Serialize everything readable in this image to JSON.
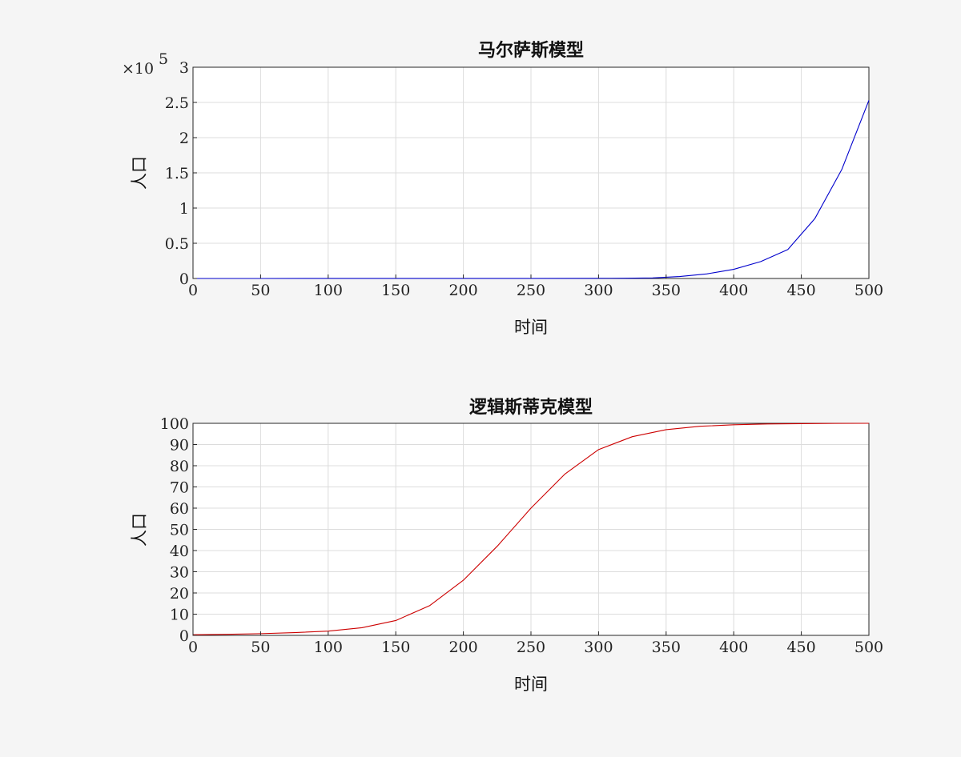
{
  "colors": {
    "background": "#f5f5f5",
    "axes_bg": "#ffffff",
    "grid": "#dcdcdc",
    "blue": "#0000cc",
    "red": "#cc0000"
  },
  "chart_data": [
    {
      "type": "line",
      "title": "马尔萨斯模型",
      "xlabel": "时间",
      "ylabel": "人口",
      "xlim": [
        0,
        500
      ],
      "ylim": [
        0,
        3
      ],
      "y_exponent_label": "×10",
      "y_exponent": "5",
      "grid": true,
      "xticks": [
        "0",
        "50",
        "100",
        "150",
        "200",
        "250",
        "300",
        "350",
        "400",
        "450",
        "500"
      ],
      "yticks": [
        "0",
        "0.5",
        "1",
        "1.5",
        "2",
        "2.5",
        "3"
      ],
      "series": [
        {
          "color": "#0000cc",
          "x": [
            0,
            50,
            100,
            150,
            200,
            250,
            300,
            320,
            340,
            360,
            380,
            400,
            420,
            440,
            460,
            480,
            500
          ],
          "y": [
            4e-06,
            6e-05,
            0.0008,
            0.0005,
            0.0006,
            0.0008,
            0.0025,
            0.0035,
            0.0075,
            0.028,
            0.065,
            0.13,
            0.24,
            0.41,
            0.85,
            1.55,
            2.53
          ]
        }
      ]
    },
    {
      "type": "line",
      "title": "逻辑斯蒂克模型",
      "xlabel": "时间",
      "ylabel": "人口",
      "xlim": [
        0,
        500
      ],
      "ylim": [
        0,
        100
      ],
      "grid": true,
      "xticks": [
        "0",
        "50",
        "100",
        "150",
        "200",
        "250",
        "300",
        "350",
        "400",
        "450",
        "500"
      ],
      "yticks": [
        "0",
        "10",
        "20",
        "30",
        "40",
        "50",
        "60",
        "70",
        "80",
        "90",
        "100"
      ],
      "series": [
        {
          "color": "#cc0000",
          "x": [
            0,
            25,
            50,
            75,
            100,
            125,
            150,
            175,
            200,
            225,
            250,
            275,
            300,
            325,
            350,
            375,
            400,
            425,
            450,
            475,
            500
          ],
          "y": [
            0.3,
            0.5,
            0.8,
            1.3,
            2.0,
            3.6,
            7.0,
            14.0,
            26.0,
            42.0,
            60.0,
            76.0,
            87.6,
            93.7,
            97.0,
            98.6,
            99.3,
            99.7,
            99.85,
            99.95,
            100.0
          ]
        }
      ]
    }
  ]
}
